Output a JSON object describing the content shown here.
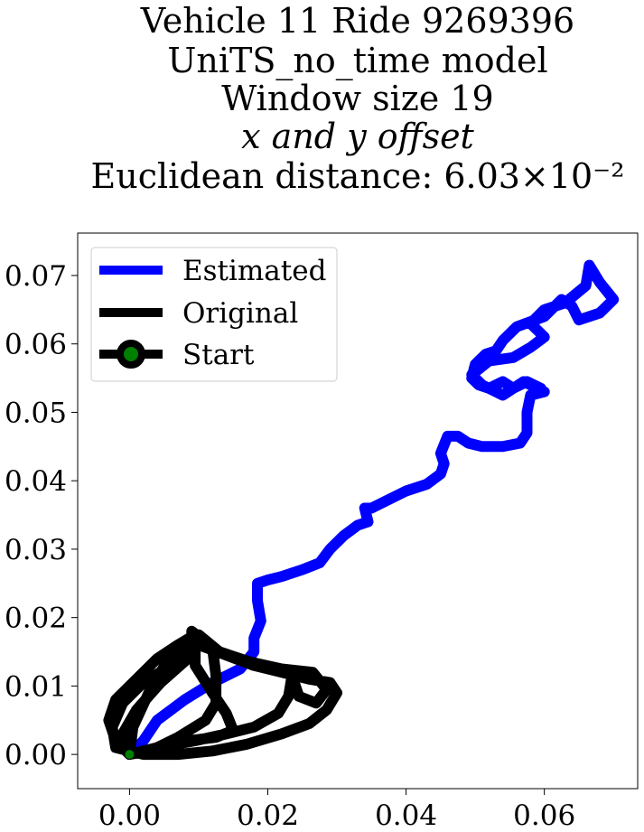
{
  "chart_data": {
    "type": "line",
    "title_lines": [
      "Vehicle 11 Ride 9269396",
      "UniTS_no_time model",
      "Window size 19",
      "x and y offset",
      "Euclidean distance: 6.03×10⁻²"
    ],
    "xlabel": "",
    "ylabel": "",
    "xlim": [
      -0.0075,
      0.0735
    ],
    "ylim": [
      -0.005,
      0.0762
    ],
    "xticks": [
      0.0,
      0.02,
      0.04,
      0.06
    ],
    "xtick_labels": [
      "0.00",
      "0.02",
      "0.04",
      "0.06"
    ],
    "yticks": [
      0.0,
      0.01,
      0.02,
      0.03,
      0.04,
      0.05,
      0.06,
      0.07
    ],
    "ytick_labels": [
      "0.00",
      "0.01",
      "0.02",
      "0.03",
      "0.04",
      "0.05",
      "0.06",
      "0.07"
    ],
    "grid": false,
    "legend_position": "top-left",
    "legend": [
      {
        "label": "Estimated",
        "color": "#0000ff",
        "marker": "none"
      },
      {
        "label": "Original",
        "color": "#000000",
        "marker": "none"
      },
      {
        "label": "Start",
        "color": "#000000",
        "marker": "circle",
        "marker_face": "#008000"
      }
    ],
    "series": [
      {
        "name": "Estimated",
        "color": "#0000ff",
        "points": [
          [
            0.0,
            0.0
          ],
          [
            0.002,
            0.002
          ],
          [
            0.004,
            0.005
          ],
          [
            0.008,
            0.008
          ],
          [
            0.012,
            0.0105
          ],
          [
            0.016,
            0.0125
          ],
          [
            0.018,
            0.015
          ],
          [
            0.018,
            0.017
          ],
          [
            0.019,
            0.0195
          ],
          [
            0.0185,
            0.0225
          ],
          [
            0.0185,
            0.025
          ],
          [
            0.02,
            0.0255
          ],
          [
            0.022,
            0.026
          ],
          [
            0.025,
            0.027
          ],
          [
            0.0275,
            0.028
          ],
          [
            0.029,
            0.03
          ],
          [
            0.031,
            0.032
          ],
          [
            0.033,
            0.0335
          ],
          [
            0.0345,
            0.034
          ],
          [
            0.034,
            0.036
          ],
          [
            0.035,
            0.036
          ],
          [
            0.037,
            0.037
          ],
          [
            0.04,
            0.0385
          ],
          [
            0.043,
            0.0395
          ],
          [
            0.045,
            0.041
          ],
          [
            0.0455,
            0.0425
          ],
          [
            0.045,
            0.044
          ],
          [
            0.046,
            0.0465
          ],
          [
            0.0475,
            0.0465
          ],
          [
            0.049,
            0.0455
          ],
          [
            0.051,
            0.045
          ],
          [
            0.054,
            0.045
          ],
          [
            0.0565,
            0.0455
          ],
          [
            0.0575,
            0.047
          ],
          [
            0.0575,
            0.05
          ],
          [
            0.058,
            0.0525
          ],
          [
            0.06,
            0.053
          ],
          [
            0.057,
            0.0545
          ],
          [
            0.054,
            0.0525
          ],
          [
            0.051,
            0.054
          ],
          [
            0.0495,
            0.0555
          ],
          [
            0.052,
            0.0575
          ],
          [
            0.0555,
            0.058
          ],
          [
            0.058,
            0.0595
          ],
          [
            0.06,
            0.061
          ],
          [
            0.058,
            0.063
          ],
          [
            0.06,
            0.065
          ],
          [
            0.063,
            0.066
          ],
          [
            0.066,
            0.0685
          ],
          [
            0.0665,
            0.0715
          ],
          [
            0.068,
            0.069
          ],
          [
            0.07,
            0.0665
          ],
          [
            0.068,
            0.0645
          ],
          [
            0.065,
            0.0635
          ],
          [
            0.064,
            0.0655
          ],
          [
            0.0625,
            0.0665
          ],
          [
            0.06,
            0.064
          ],
          [
            0.056,
            0.0625
          ],
          [
            0.054,
            0.0605
          ],
          [
            0.053,
            0.059
          ],
          [
            0.0515,
            0.0585
          ],
          [
            0.05,
            0.057
          ],
          [
            0.0495,
            0.055
          ],
          [
            0.0505,
            0.054
          ],
          [
            0.052,
            0.0535
          ],
          [
            0.054,
            0.0545
          ],
          [
            0.0555,
            0.0535
          ],
          [
            0.0575,
            0.0545
          ],
          [
            0.0595,
            0.0535
          ]
        ]
      },
      {
        "name": "Original",
        "color": "#000000",
        "points": [
          [
            0.0,
            0.0
          ],
          [
            -0.002,
            0.002
          ],
          [
            -0.003,
            0.005
          ],
          [
            -0.002,
            0.008
          ],
          [
            0.001,
            0.011
          ],
          [
            0.004,
            0.014
          ],
          [
            0.007,
            0.016
          ],
          [
            0.0095,
            0.0175
          ],
          [
            0.01,
            0.016
          ],
          [
            0.014,
            0.0145
          ],
          [
            0.018,
            0.013
          ],
          [
            0.022,
            0.012
          ],
          [
            0.026,
            0.011
          ],
          [
            0.029,
            0.0105
          ],
          [
            0.03,
            0.009
          ],
          [
            0.0285,
            0.0065
          ],
          [
            0.026,
            0.0045
          ],
          [
            0.022,
            0.003
          ],
          [
            0.017,
            0.0015
          ],
          [
            0.012,
            0.0005
          ],
          [
            0.007,
            0.0
          ],
          [
            0.002,
            0.0
          ],
          [
            -0.002,
            0.001
          ],
          [
            -0.0025,
            0.004
          ],
          [
            -0.001,
            0.0075
          ],
          [
            0.002,
            0.0105
          ],
          [
            0.006,
            0.013
          ],
          [
            0.0095,
            0.015
          ],
          [
            0.0095,
            0.013
          ],
          [
            0.012,
            0.009
          ],
          [
            0.014,
            0.006
          ],
          [
            0.015,
            0.0035
          ],
          [
            0.0125,
            0.0025
          ],
          [
            0.0085,
            0.002
          ],
          [
            0.004,
            0.001
          ],
          [
            0.0,
            0.0
          ],
          [
            -0.001,
            0.003
          ],
          [
            0.001,
            0.0065
          ],
          [
            0.0045,
            0.0105
          ],
          [
            0.009,
            0.0145
          ],
          [
            0.009,
            0.018
          ],
          [
            0.012,
            0.0155
          ],
          [
            0.0125,
            0.0115
          ],
          [
            0.0125,
            0.0075
          ],
          [
            0.011,
            0.005
          ],
          [
            0.007,
            0.0025
          ],
          [
            0.003,
            0.0005
          ],
          [
            0.0,
            0.0
          ],
          [
            0.004,
            0.001
          ],
          [
            0.0095,
            0.002
          ],
          [
            0.014,
            0.003
          ],
          [
            0.018,
            0.004
          ],
          [
            0.0215,
            0.006
          ],
          [
            0.023,
            0.0085
          ],
          [
            0.0235,
            0.0115
          ],
          [
            0.0245,
            0.0085
          ],
          [
            0.027,
            0.0075
          ],
          [
            0.0285,
            0.0095
          ],
          [
            0.0265,
            0.012
          ],
          [
            0.022,
            0.0125
          ],
          [
            0.0175,
            0.0135
          ],
          [
            0.013,
            0.015
          ],
          [
            0.01,
            0.0175
          ],
          [
            0.006,
            0.0145
          ],
          [
            0.003,
            0.0095
          ],
          [
            0.0005,
            0.004
          ],
          [
            0.0,
            0.0
          ]
        ]
      }
    ],
    "start": {
      "x": 0.0,
      "y": 0.0,
      "marker_face": "#008000",
      "marker_edge": "#000000"
    }
  }
}
